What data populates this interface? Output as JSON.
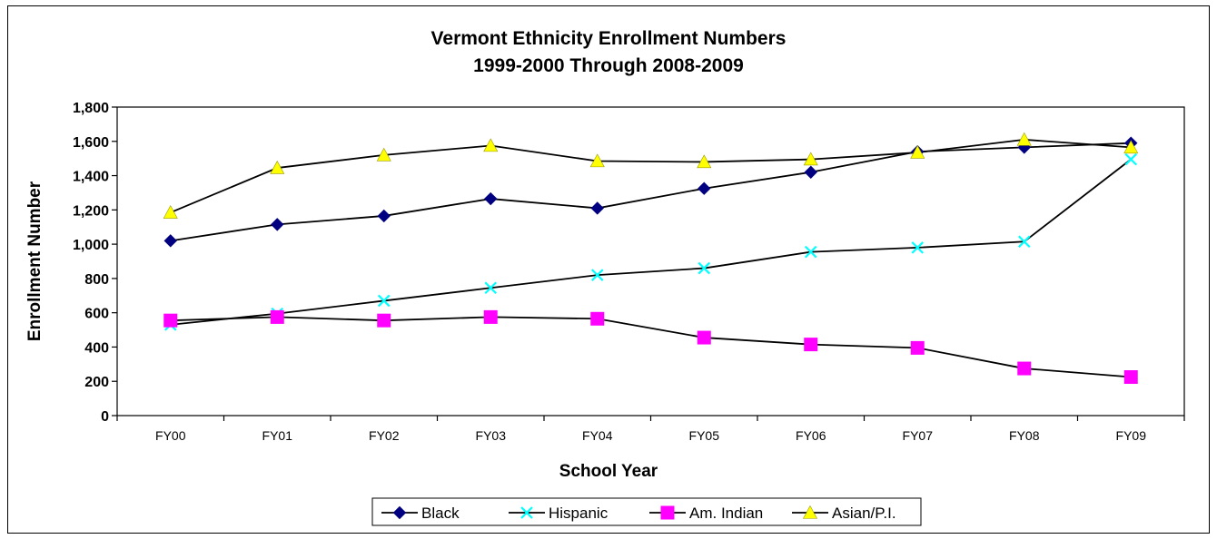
{
  "chart_data": {
    "type": "line",
    "title": "Vermont Ethnicity Enrollment Numbers",
    "subtitle": "1999-2000 Through 2008-2009",
    "xlabel": "School Year",
    "ylabel": "Enrollment Number",
    "categories": [
      "FY00",
      "FY01",
      "FY02",
      "FY03",
      "FY04",
      "FY05",
      "FY06",
      "FY07",
      "FY08",
      "FY09"
    ],
    "ylim": [
      0,
      1800
    ],
    "yticks": [
      "0",
      "200",
      "400",
      "600",
      "800",
      "1,000",
      "1,200",
      "1,400",
      "1,600",
      "1,800"
    ],
    "ytick_values": [
      0,
      200,
      400,
      600,
      800,
      1000,
      1200,
      1400,
      1600,
      1800
    ],
    "grid": false,
    "legend_position": "bottom",
    "series": [
      {
        "name": "Black",
        "color": "#000080",
        "marker": "diamond",
        "values": [
          1020,
          1115,
          1165,
          1265,
          1210,
          1325,
          1420,
          1540,
          1565,
          1590
        ]
      },
      {
        "name": "Hispanic",
        "color": "#00FFFF",
        "marker": "x",
        "values": [
          530,
          595,
          670,
          745,
          820,
          860,
          955,
          980,
          1015,
          1495
        ]
      },
      {
        "name": "Am. Indian",
        "color": "#FF00FF",
        "marker": "square",
        "values": [
          555,
          575,
          555,
          575,
          565,
          455,
          415,
          395,
          275,
          225
        ]
      },
      {
        "name": "Asian/P.I.",
        "color": "#FFFF00",
        "marker": "triangle",
        "values": [
          1185,
          1445,
          1520,
          1575,
          1485,
          1480,
          1495,
          1535,
          1610,
          1565
        ]
      }
    ]
  }
}
